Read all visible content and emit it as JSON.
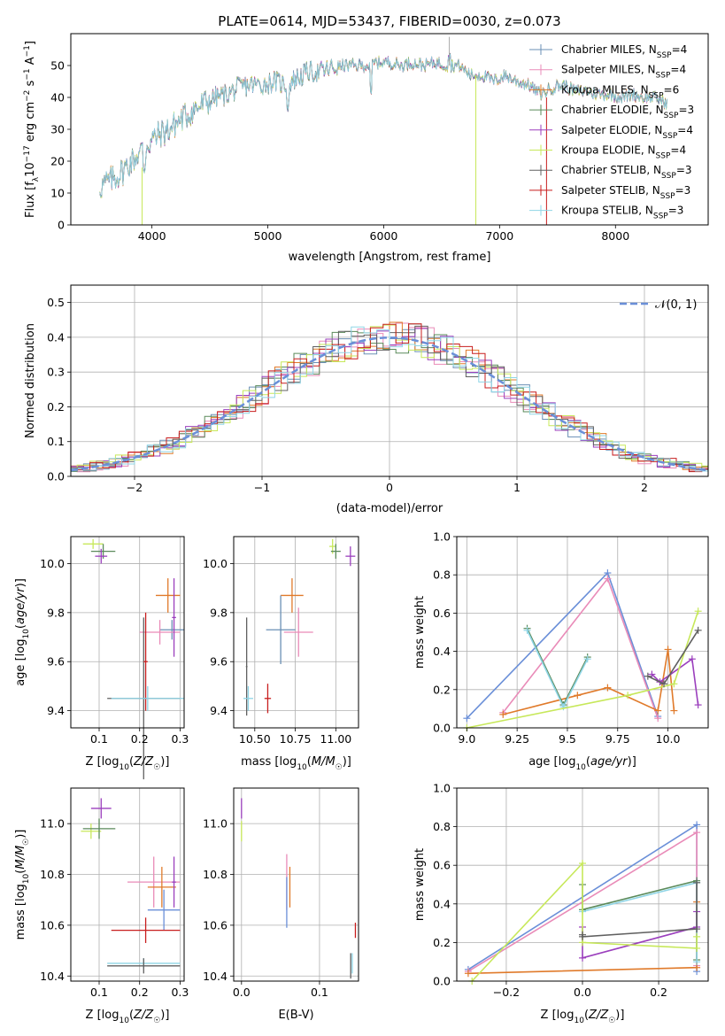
{
  "figure": {
    "title": "PLATE=0614, MJD=53437, FIBERID=0030, z=0.073"
  },
  "colors": {
    "Chabrier MILES": "#6a8fb5",
    "Salpeter MILES": "#e98bb8",
    "Kroupa MILES": "#e07a2a",
    "Chabrier ELODIE": "#5a8a5a",
    "Salpeter ELODIE": "#9b3fbd",
    "Kroupa ELODIE": "#c7e85a",
    "Chabrier STELIB": "#606060",
    "Salpeter STELIB": "#c81e1e",
    "Kroupa STELIB": "#8fd5e6",
    "blue_model": "#6a8fd8",
    "gaussian": "#6a8fd8"
  },
  "chart_data": [
    {
      "id": "spectrum",
      "type": "line",
      "title": "PLATE=0614, MJD=53437, FIBERID=0030, z=0.073",
      "xlabel": "wavelength [Angstrom, rest frame]",
      "ylabel": "Flux [f$_\\lambda$10$^{-17}$ erg cm$^{-2}$ s$^{-1}$ A$^{-1}$]",
      "xlim": [
        3300,
        8800
      ],
      "ylim": [
        0,
        60
      ],
      "xticks": [
        4000,
        5000,
        6000,
        7000,
        8000
      ],
      "yticks": [
        0,
        10,
        20,
        30,
        40,
        50
      ],
      "grid": false,
      "legend_loc": "upper right",
      "legend": [
        {
          "label": "Chabrier MILES, N",
          "sub": "SSP",
          "suffix": "=4",
          "color_key": "Chabrier MILES"
        },
        {
          "label": "Salpeter MILES, N",
          "sub": "SSP",
          "suffix": "=4",
          "color_key": "Salpeter MILES"
        },
        {
          "label": "Kroupa MILES, N",
          "sub": "SSP",
          "suffix": "=6",
          "color_key": "Kroupa MILES"
        },
        {
          "label": "Chabrier ELODIE, N",
          "sub": "SSP",
          "suffix": "=3",
          "color_key": "Chabrier ELODIE"
        },
        {
          "label": "Salpeter ELODIE, N",
          "sub": "SSP",
          "suffix": "=4",
          "color_key": "Salpeter ELODIE"
        },
        {
          "label": "Kroupa ELODIE, N",
          "sub": "SSP",
          "suffix": "=4",
          "color_key": "Kroupa ELODIE"
        },
        {
          "label": "Chabrier STELIB, N",
          "sub": "SSP",
          "suffix": "=3",
          "color_key": "Chabrier STELIB"
        },
        {
          "label": "Salpeter STELIB, N",
          "sub": "SSP",
          "suffix": "=3",
          "color_key": "Salpeter STELIB"
        },
        {
          "label": "Kroupa STELIB, N",
          "sub": "SSP",
          "suffix": "=3",
          "color_key": "Kroupa STELIB"
        }
      ],
      "continuum": [
        [
          3550,
          12
        ],
        [
          3650,
          14
        ],
        [
          3750,
          17
        ],
        [
          3850,
          21
        ],
        [
          3950,
          25
        ],
        [
          4050,
          28
        ],
        [
          4150,
          30
        ],
        [
          4250,
          33
        ],
        [
          4350,
          36
        ],
        [
          4450,
          38
        ],
        [
          4550,
          40
        ],
        [
          4650,
          41
        ],
        [
          4750,
          43
        ],
        [
          4850,
          44
        ],
        [
          4950,
          44
        ],
        [
          5050,
          45
        ],
        [
          5150,
          44
        ],
        [
          5250,
          46
        ],
        [
          5350,
          48
        ],
        [
          5450,
          48
        ],
        [
          5550,
          49
        ],
        [
          5650,
          50
        ],
        [
          5750,
          50
        ],
        [
          5850,
          50
        ],
        [
          5950,
          51
        ],
        [
          6050,
          51
        ],
        [
          6150,
          50
        ],
        [
          6250,
          51
        ],
        [
          6350,
          50
        ],
        [
          6450,
          51
        ],
        [
          6550,
          50
        ],
        [
          6650,
          50
        ],
        [
          6750,
          47
        ],
        [
          6850,
          47
        ],
        [
          6950,
          45
        ],
        [
          7050,
          47
        ],
        [
          7150,
          45
        ],
        [
          7250,
          44
        ],
        [
          7350,
          41
        ],
        [
          7450,
          43
        ],
        [
          7550,
          44
        ],
        [
          7650,
          42
        ],
        [
          7750,
          42
        ],
        [
          7850,
          41
        ],
        [
          7950,
          41
        ],
        [
          8050,
          40
        ],
        [
          8150,
          41
        ],
        [
          8250,
          40
        ],
        [
          8350,
          40
        ],
        [
          8450,
          38
        ]
      ]
    },
    {
      "id": "residuals",
      "type": "bar",
      "xlabel": "(data-model)/error",
      "ylabel": "Normed distribution",
      "xlim": [
        -2.5,
        2.5
      ],
      "ylim": [
        0,
        0.55
      ],
      "xticks": [
        -2,
        -1,
        0,
        1,
        2
      ],
      "yticks": [
        0.0,
        0.1,
        0.2,
        0.3,
        0.4,
        0.5
      ],
      "grid": true,
      "legend_loc": "upper right",
      "legend": [
        {
          "label": "𝒩(0, 1)",
          "color_key": "gaussian"
        }
      ],
      "bin_width": 0.1,
      "note": "step histograms per model, one per color; dashed gaussian overlay"
    },
    {
      "id": "age_vs_Z",
      "type": "scatter",
      "xlabel": "Z [log10(Z/Z☉)]",
      "ylabel": "age  [log10(age/yr)]",
      "xlim": [
        0.03,
        0.31
      ],
      "ylim": [
        9.33,
        10.11
      ],
      "xticks": [
        0.1,
        0.2,
        0.3
      ],
      "yticks": [
        9.4,
        9.6,
        9.8,
        10.0
      ],
      "grid": true,
      "points": [
        {
          "color_key": "Kroupa ELODIE",
          "x": 0.085,
          "xerr": 0.025,
          "y": 10.08,
          "yerr": 0.02
        },
        {
          "color_key": "Chabrier ELODIE",
          "x": 0.11,
          "xerr": 0.03,
          "y": 10.05,
          "yerr": 0.03
        },
        {
          "color_key": "Salpeter ELODIE",
          "x": 0.105,
          "xerr": 0.015,
          "y": 10.03,
          "yerr": 0.03
        },
        {
          "color_key": "Kroupa MILES",
          "x": 0.27,
          "xerr": 0.03,
          "y": 9.87,
          "yerr": 0.07
        },
        {
          "color_key": "Chabrier MILES",
          "x": 0.28,
          "xerr": 0.03,
          "y": 9.73,
          "yerr": 0.04
        },
        {
          "color_key": "Salpeter MILES",
          "x": 0.25,
          "xerr": 0.05,
          "y": 9.72,
          "yerr": 0.05
        },
        {
          "color_key": "Salpeter ELODIE",
          "x": 0.285,
          "xerr": 0.005,
          "y": 9.78,
          "yerr": 0.16
        },
        {
          "color_key": "Chabrier STELIB",
          "x": 0.21,
          "xerr": 0.09,
          "y": 9.45,
          "yerr": 0.33
        },
        {
          "color_key": "Salpeter STELIB",
          "x": 0.215,
          "xerr": 0.005,
          "y": 9.6,
          "yerr": 0.2
        },
        {
          "color_key": "Kroupa STELIB",
          "x": 0.22,
          "xerr": 0.09,
          "y": 9.45,
          "yerr": 0.05
        }
      ]
    },
    {
      "id": "age_vs_mass",
      "type": "scatter",
      "xlabel": "mass [log10(M/M☉)]",
      "ylabel": "",
      "xlim": [
        10.37,
        11.14
      ],
      "ylim": [
        9.33,
        10.11
      ],
      "xticks": [
        10.5,
        10.75,
        11.0
      ],
      "yticks": [
        9.4,
        9.6,
        9.8,
        10.0
      ],
      "grid": true,
      "points": [
        {
          "color_key": "Kroupa ELODIE",
          "x": 10.98,
          "xerr": 0.02,
          "y": 10.07,
          "yerr": 0.03
        },
        {
          "color_key": "Chabrier ELODIE",
          "x": 11.0,
          "xerr": 0.03,
          "y": 10.05,
          "yerr": 0.03
        },
        {
          "color_key": "Salpeter ELODIE",
          "x": 11.09,
          "xerr": 0.03,
          "y": 10.03,
          "yerr": 0.04
        },
        {
          "color_key": "Kroupa MILES",
          "x": 10.73,
          "xerr": 0.07,
          "y": 9.87,
          "yerr": 0.07
        },
        {
          "color_key": "Chabrier MILES",
          "x": 10.66,
          "xerr": 0.09,
          "y": 9.73,
          "yerr": 0.14
        },
        {
          "color_key": "Salpeter MILES",
          "x": 10.77,
          "xerr": 0.09,
          "y": 9.72,
          "yerr": 0.1
        },
        {
          "color_key": "Chabrier STELIB",
          "x": 10.45,
          "xerr": 0.005,
          "y": 9.58,
          "yerr": 0.2
        },
        {
          "color_key": "Salpeter STELIB",
          "x": 10.58,
          "xerr": 0.02,
          "y": 9.45,
          "yerr": 0.06
        },
        {
          "color_key": "Kroupa STELIB",
          "x": 10.46,
          "xerr": 0.03,
          "y": 9.45,
          "yerr": 0.05
        }
      ]
    },
    {
      "id": "massweight_vs_age",
      "type": "line",
      "xlabel": "age  [log10(age/yr)]",
      "ylabel": "mass weight",
      "xlim": [
        8.95,
        10.2
      ],
      "ylim": [
        0,
        1.0
      ],
      "xticks": [
        9.0,
        9.25,
        9.5,
        9.75,
        10.0
      ],
      "yticks": [
        0.0,
        0.2,
        0.4,
        0.6,
        0.8,
        1.0
      ],
      "grid": true,
      "series": [
        {
          "color_key": "blue_model",
          "x": [
            9.0,
            9.7,
            9.95
          ],
          "y": [
            0.05,
            0.81,
            0.06
          ]
        },
        {
          "color_key": "Salpeter MILES",
          "x": [
            9.18,
            9.7,
            9.95
          ],
          "y": [
            0.08,
            0.78,
            0.05
          ]
        },
        {
          "color_key": "Kroupa MILES",
          "x": [
            9.18,
            9.55,
            9.7,
            9.95,
            10.0,
            10.03
          ],
          "y": [
            0.07,
            0.17,
            0.21,
            0.09,
            0.41,
            0.09
          ]
        },
        {
          "color_key": "Chabrier ELODIE",
          "x": [
            9.3,
            9.48,
            9.6
          ],
          "y": [
            0.52,
            0.12,
            0.37
          ]
        },
        {
          "color_key": "Kroupa STELIB",
          "x": [
            9.3,
            9.48,
            9.6
          ],
          "y": [
            0.51,
            0.11,
            0.36
          ]
        },
        {
          "color_key": "Salpeter ELODIE",
          "x": [
            9.92,
            9.96,
            10.12,
            10.15
          ],
          "y": [
            0.28,
            0.24,
            0.36,
            0.12
          ]
        },
        {
          "color_key": "Kroupa ELODIE",
          "x": [
            9.0,
            9.8,
            10.03,
            10.15
          ],
          "y": [
            0.0,
            0.17,
            0.23,
            0.61
          ]
        },
        {
          "color_key": "Chabrier STELIB",
          "x": [
            9.9,
            9.98,
            10.15
          ],
          "y": [
            0.27,
            0.23,
            0.51
          ]
        }
      ]
    },
    {
      "id": "mass_vs_Z",
      "type": "scatter",
      "xlabel": "Z [log10(Z/Z☉)]",
      "ylabel": "mass [log10(M/M☉)]",
      "xlim": [
        0.03,
        0.31
      ],
      "ylim": [
        10.38,
        11.14
      ],
      "xticks": [
        0.1,
        0.2,
        0.3
      ],
      "yticks": [
        10.4,
        10.6,
        10.8,
        11.0
      ],
      "grid": true,
      "points": [
        {
          "color_key": "Salpeter ELODIE",
          "x": 0.105,
          "xerr": 0.025,
          "y": 11.06,
          "yerr": 0.04
        },
        {
          "color_key": "Kroupa ELODIE",
          "x": 0.08,
          "xerr": 0.025,
          "y": 10.97,
          "yerr": 0.03
        },
        {
          "color_key": "Chabrier ELODIE",
          "x": 0.1,
          "xerr": 0.04,
          "y": 10.98,
          "yerr": 0.04
        },
        {
          "color_key": "Salpeter MILES",
          "x": 0.235,
          "xerr": 0.065,
          "y": 10.77,
          "yerr": 0.1
        },
        {
          "color_key": "Kroupa MILES",
          "x": 0.255,
          "xerr": 0.035,
          "y": 10.75,
          "yerr": 0.08
        },
        {
          "color_key": "Salpeter ELODIE",
          "x": 0.285,
          "xerr": 0.005,
          "y": 10.77,
          "yerr": 0.1
        },
        {
          "color_key": "blue_model",
          "x": 0.26,
          "xerr": 0.04,
          "y": 10.66,
          "yerr": 0.08
        },
        {
          "color_key": "Salpeter STELIB",
          "x": 0.215,
          "xerr": 0.085,
          "y": 10.58,
          "yerr": 0.05
        },
        {
          "color_key": "Kroupa STELIB",
          "x": 0.21,
          "xerr": 0.09,
          "y": 10.45,
          "yerr": 0.02
        },
        {
          "color_key": "Chabrier STELIB",
          "x": 0.21,
          "xerr": 0.09,
          "y": 10.44,
          "yerr": 0.03
        }
      ]
    },
    {
      "id": "mass_vs_EBV",
      "type": "scatter",
      "xlabel": "E(B-V)",
      "ylabel": "",
      "xlim": [
        -0.01,
        0.15
      ],
      "ylim": [
        10.38,
        11.14
      ],
      "xticks": [
        0.0,
        0.1
      ],
      "yticks": [
        10.4,
        10.6,
        10.8,
        11.0
      ],
      "grid": true,
      "points": [
        {
          "color_key": "Salpeter ELODIE",
          "x": 0.0,
          "xerr": 0.0,
          "y": 11.06,
          "yerr": 0.04
        },
        {
          "color_key": "Kroupa ELODIE",
          "x": 0.0,
          "xerr": 0.0,
          "y": 10.97,
          "yerr": 0.04
        },
        {
          "color_key": "Salpeter MILES",
          "x": 0.058,
          "xerr": 0.0,
          "y": 10.77,
          "yerr": 0.11
        },
        {
          "color_key": "Kroupa MILES",
          "x": 0.062,
          "xerr": 0.0,
          "y": 10.75,
          "yerr": 0.08
        },
        {
          "color_key": "blue_model",
          "x": 0.058,
          "xerr": 0.0,
          "y": 10.69,
          "yerr": 0.1
        },
        {
          "color_key": "Salpeter STELIB",
          "x": 0.146,
          "xerr": 0.0,
          "y": 10.58,
          "yerr": 0.03
        },
        {
          "color_key": "Kroupa STELIB",
          "x": 0.142,
          "xerr": 0.0,
          "y": 10.45,
          "yerr": 0.04
        },
        {
          "color_key": "Chabrier STELIB",
          "x": 0.14,
          "xerr": 0.0,
          "y": 10.44,
          "yerr": 0.05
        }
      ]
    },
    {
      "id": "massweight_vs_Z",
      "type": "line",
      "xlabel": "Z [log10(Z/Z☉)]",
      "ylabel": "mass weight",
      "xlim": [
        -0.33,
        0.33
      ],
      "ylim": [
        0,
        1.0
      ],
      "xticks": [
        -0.2,
        0.0,
        0.2
      ],
      "yticks": [
        0.0,
        0.2,
        0.4,
        0.6,
        0.8,
        1.0
      ],
      "grid": true,
      "series": [
        {
          "color_key": "blue_model",
          "x": [
            -0.3,
            0.3,
            0.3
          ],
          "y": [
            0.06,
            0.81,
            0.05
          ]
        },
        {
          "color_key": "Salpeter MILES",
          "x": [
            -0.3,
            0.3,
            0.3
          ],
          "y": [
            0.05,
            0.77,
            0.08
          ]
        },
        {
          "color_key": "Kroupa MILES",
          "x": [
            -0.3,
            0.3,
            0.3
          ],
          "y": [
            0.04,
            0.07,
            0.41
          ]
        },
        {
          "color_key": "Chabrier ELODIE",
          "x": [
            0.0,
            0.0,
            0.3,
            0.3
          ],
          "y": [
            0.5,
            0.37,
            0.52,
            0.11
          ]
        },
        {
          "color_key": "Kroupa STELIB",
          "x": [
            0.0,
            0.3,
            0.3
          ],
          "y": [
            0.36,
            0.51,
            0.1
          ]
        },
        {
          "color_key": "Salpeter ELODIE",
          "x": [
            0.0,
            0.0,
            0.3,
            0.3
          ],
          "y": [
            0.28,
            0.12,
            0.28,
            0.36
          ]
        },
        {
          "color_key": "Kroupa ELODIE",
          "x": [
            -0.29,
            0.0,
            0.0,
            0.3,
            0.3
          ],
          "y": [
            0.0,
            0.61,
            0.2,
            0.17,
            0.23
          ]
        },
        {
          "color_key": "Chabrier STELIB",
          "x": [
            0.0,
            0.0,
            0.3,
            0.3
          ],
          "y": [
            0.24,
            0.23,
            0.27,
            0.51
          ]
        }
      ]
    }
  ]
}
